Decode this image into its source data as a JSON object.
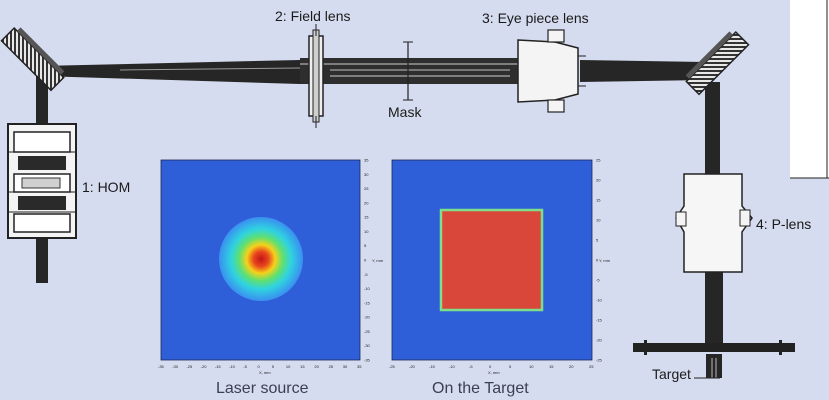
{
  "labels": {
    "field_lens": "2: Field lens",
    "eyepiece_lens": "3: Eye piece lens",
    "mask": "Mask",
    "hom": "1: HOM",
    "p_lens": "4: P-lens",
    "target": "Target"
  },
  "plots": [
    {
      "caption": "Laser source",
      "xlabel": "X, mm",
      "ylabel": "Y, mm",
      "xticks": [
        "-35",
        "-30",
        "-25",
        "-20",
        "-15",
        "-10",
        "-5",
        "0",
        "5",
        "10",
        "15",
        "20",
        "25",
        "30",
        "35"
      ],
      "yticks": [
        "35",
        "30",
        "25",
        "20",
        "15",
        "10",
        "5",
        "0",
        "-5",
        "-10",
        "-15",
        "-20",
        "-25",
        "-30",
        "-35"
      ],
      "profile": "gaussian"
    },
    {
      "caption": "On the Target",
      "xlabel": "X, mm",
      "ylabel": "Y, mm",
      "xticks": [
        "-25",
        "-20",
        "-15",
        "-10",
        "-5",
        "0",
        "5",
        "10",
        "15",
        "20",
        "25"
      ],
      "yticks": [
        "25",
        "20",
        "15",
        "10",
        "5",
        "0",
        "-5",
        "-10",
        "-15",
        "-20",
        "-25"
      ],
      "profile": "flat-top square"
    }
  ],
  "colors": {
    "background": "#d6dcef",
    "beam": "#2a2a2a",
    "plot_field": "#2f5fd8",
    "flat_top": "#d9473a"
  }
}
